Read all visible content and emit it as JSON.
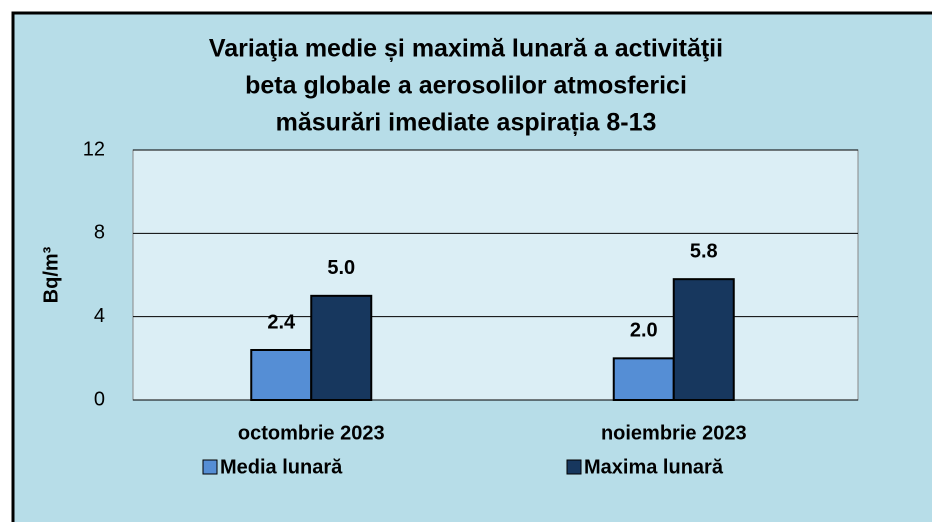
{
  "chart_data": {
    "type": "bar",
    "title": [
      "Variaţia medie și maximă lunară a activităţii",
      "beta globale  a aerosolilor atmosferici",
      "măsurări imediate aspirația 8-13"
    ],
    "y_label": "Bq/m³",
    "categories": [
      "octombrie 2023",
      "noiembrie 2023"
    ],
    "series": [
      {
        "name": "Media lunară",
        "color": "#558ed5",
        "values": [
          2.4,
          2.0
        ],
        "value_labels": [
          "2.4",
          "2.0"
        ]
      },
      {
        "name": "Maxima lunară",
        "color": "#17375e",
        "values": [
          5,
          5.8
        ],
        "value_labels": [
          "5.0",
          "5.8"
        ]
      }
    ],
    "ylim": [
      0,
      12
    ],
    "yticks": [
      0,
      4,
      8,
      12
    ],
    "grid": true,
    "legend": "bottom"
  }
}
